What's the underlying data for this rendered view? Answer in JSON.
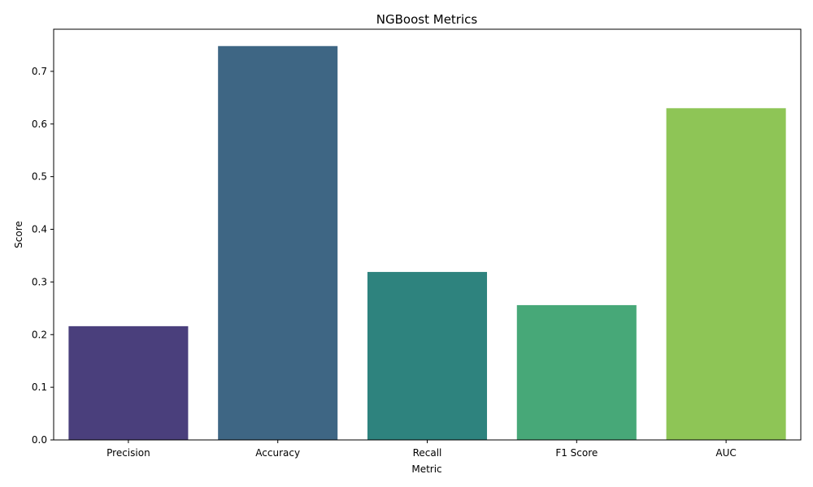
{
  "chart_data": {
    "type": "bar",
    "title": "NGBoost Metrics",
    "xlabel": "Metric",
    "ylabel": "Score",
    "categories": [
      "Precision",
      "Accuracy",
      "Recall",
      "F1 Score",
      "AUC"
    ],
    "values": [
      0.216,
      0.748,
      0.319,
      0.256,
      0.63
    ],
    "colors": [
      "#4a3f7c",
      "#3e6684",
      "#2e837e",
      "#47a878",
      "#8ec556"
    ],
    "ylim": [
      0,
      0.78
    ],
    "yticks": [
      "0.0",
      "0.1",
      "0.2",
      "0.3",
      "0.4",
      "0.5",
      "0.6",
      "0.7"
    ],
    "grid": false,
    "legend": "none"
  }
}
